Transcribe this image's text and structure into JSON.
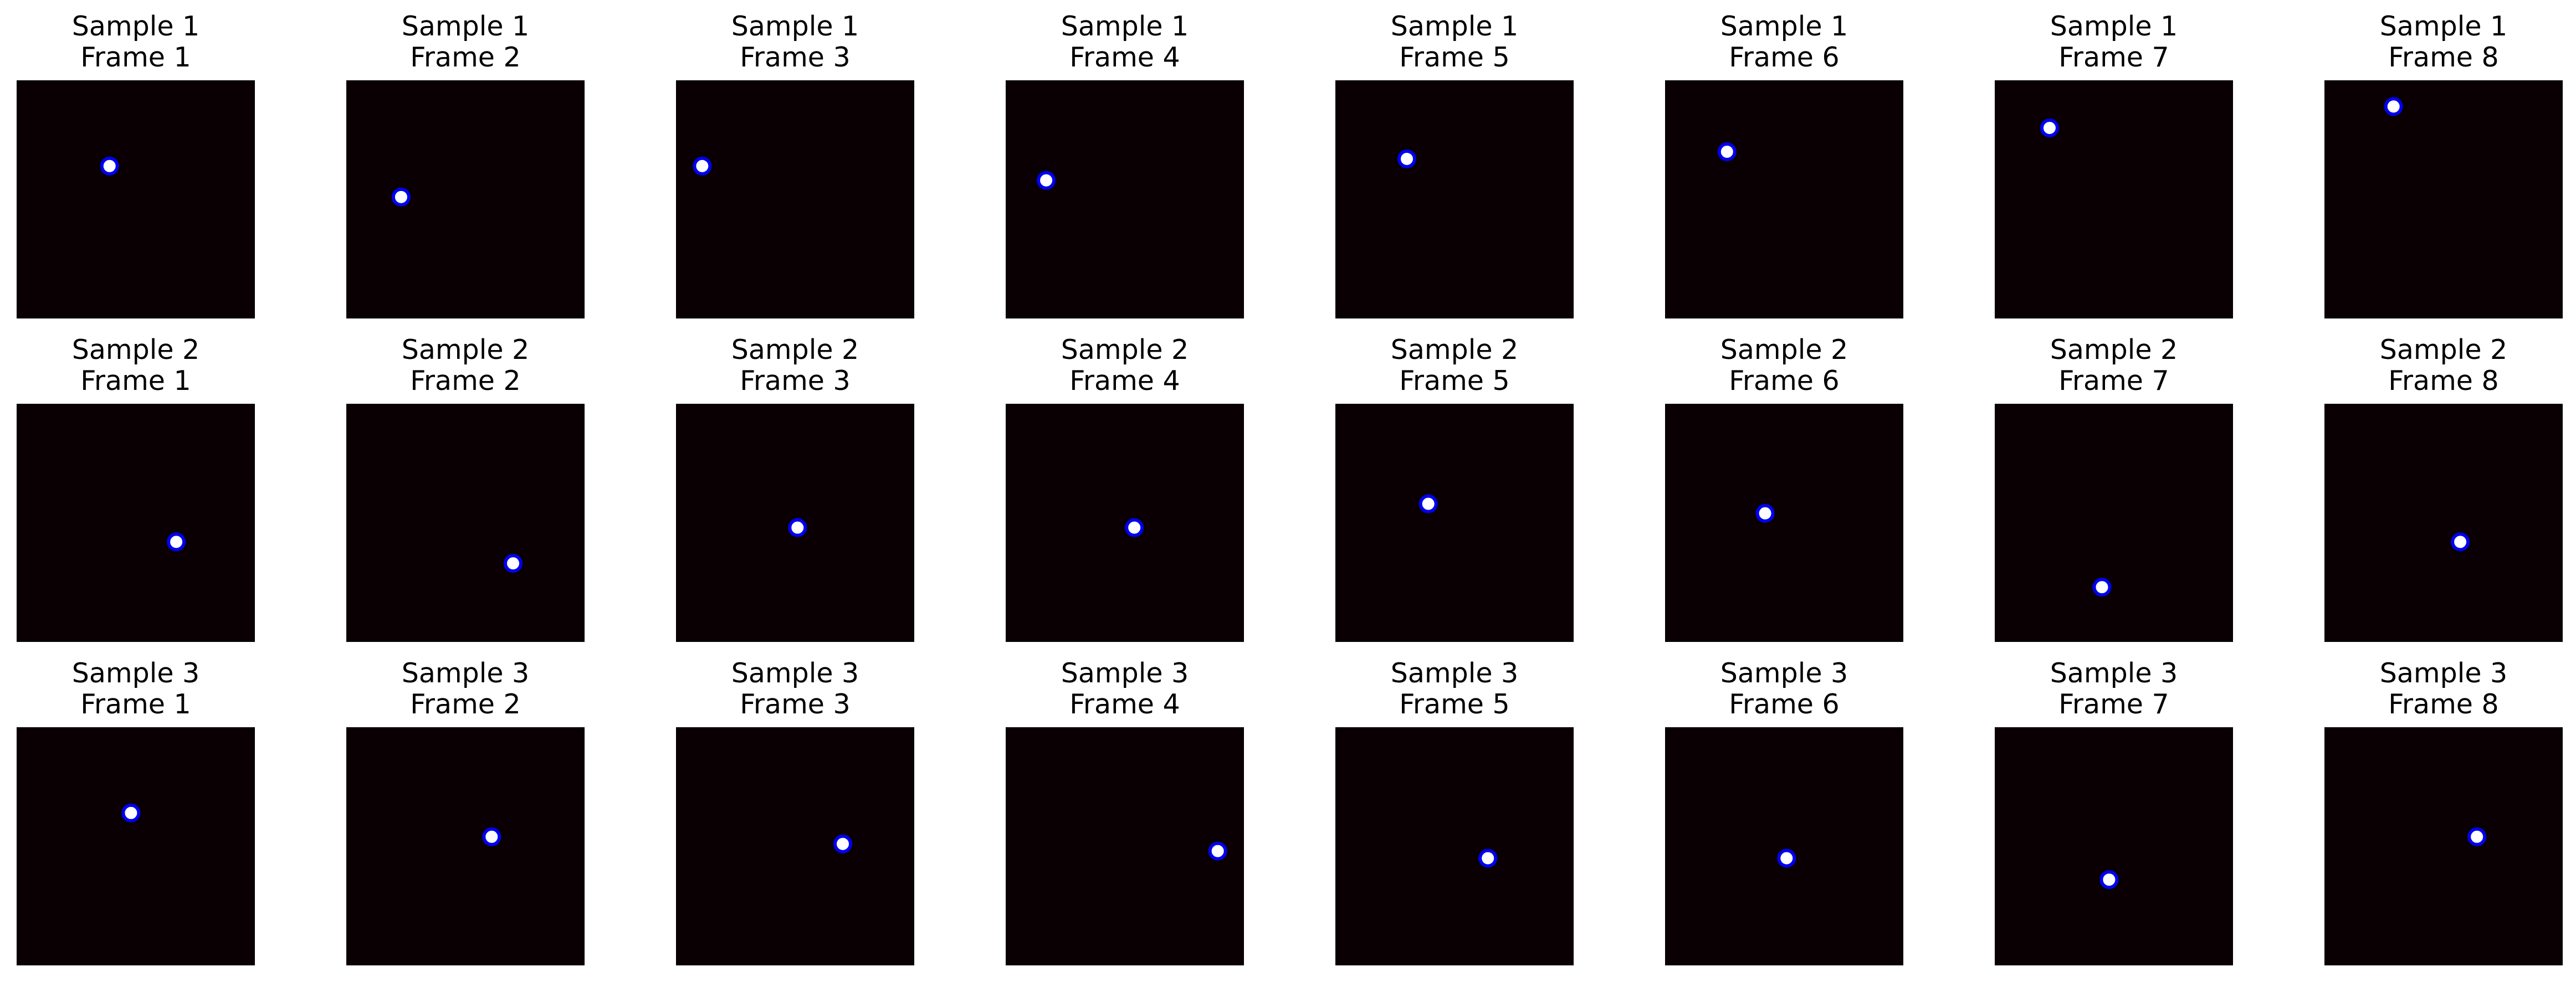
{
  "chart_data": {
    "type": "scatter",
    "layout": {
      "rows": 3,
      "columns": 8
    },
    "style": {
      "background": "#0a0003",
      "spine": "#000000",
      "marker_fill": "#ffffff",
      "marker_edge": "#0000ee",
      "text": "#000000",
      "ticks": "hidden"
    },
    "samples": [
      {
        "label": "Sample 1",
        "frames": [
          {
            "label": "Frame 1",
            "x": 0.39,
            "y": 0.64
          },
          {
            "label": "Frame 2",
            "x": 0.23,
            "y": 0.51
          },
          {
            "label": "Frame 3",
            "x": 0.11,
            "y": 0.64
          },
          {
            "label": "Frame 4",
            "x": 0.17,
            "y": 0.58
          },
          {
            "label": "Frame 5",
            "x": 0.3,
            "y": 0.67
          },
          {
            "label": "Frame 6",
            "x": 0.26,
            "y": 0.7
          },
          {
            "label": "Frame 7",
            "x": 0.23,
            "y": 0.8
          },
          {
            "label": "Frame 8",
            "x": 0.29,
            "y": 0.89
          }
        ]
      },
      {
        "label": "Sample 2",
        "frames": [
          {
            "label": "Frame 1",
            "x": 0.67,
            "y": 0.42
          },
          {
            "label": "Frame 2",
            "x": 0.7,
            "y": 0.33
          },
          {
            "label": "Frame 3",
            "x": 0.51,
            "y": 0.48
          },
          {
            "label": "Frame 4",
            "x": 0.54,
            "y": 0.48
          },
          {
            "label": "Frame 5",
            "x": 0.39,
            "y": 0.58
          },
          {
            "label": "Frame 6",
            "x": 0.42,
            "y": 0.54
          },
          {
            "label": "Frame 7",
            "x": 0.45,
            "y": 0.23
          },
          {
            "label": "Frame 8",
            "x": 0.57,
            "y": 0.42
          }
        ]
      },
      {
        "label": "Sample 3",
        "frames": [
          {
            "label": "Frame 1",
            "x": 0.48,
            "y": 0.64
          },
          {
            "label": "Frame 2",
            "x": 0.61,
            "y": 0.54
          },
          {
            "label": "Frame 3",
            "x": 0.7,
            "y": 0.51
          },
          {
            "label": "Frame 4",
            "x": 0.89,
            "y": 0.48
          },
          {
            "label": "Frame 5",
            "x": 0.64,
            "y": 0.45
          },
          {
            "label": "Frame 6",
            "x": 0.51,
            "y": 0.45
          },
          {
            "label": "Frame 7",
            "x": 0.48,
            "y": 0.36
          },
          {
            "label": "Frame 8",
            "x": 0.64,
            "y": 0.54
          }
        ]
      }
    ]
  }
}
